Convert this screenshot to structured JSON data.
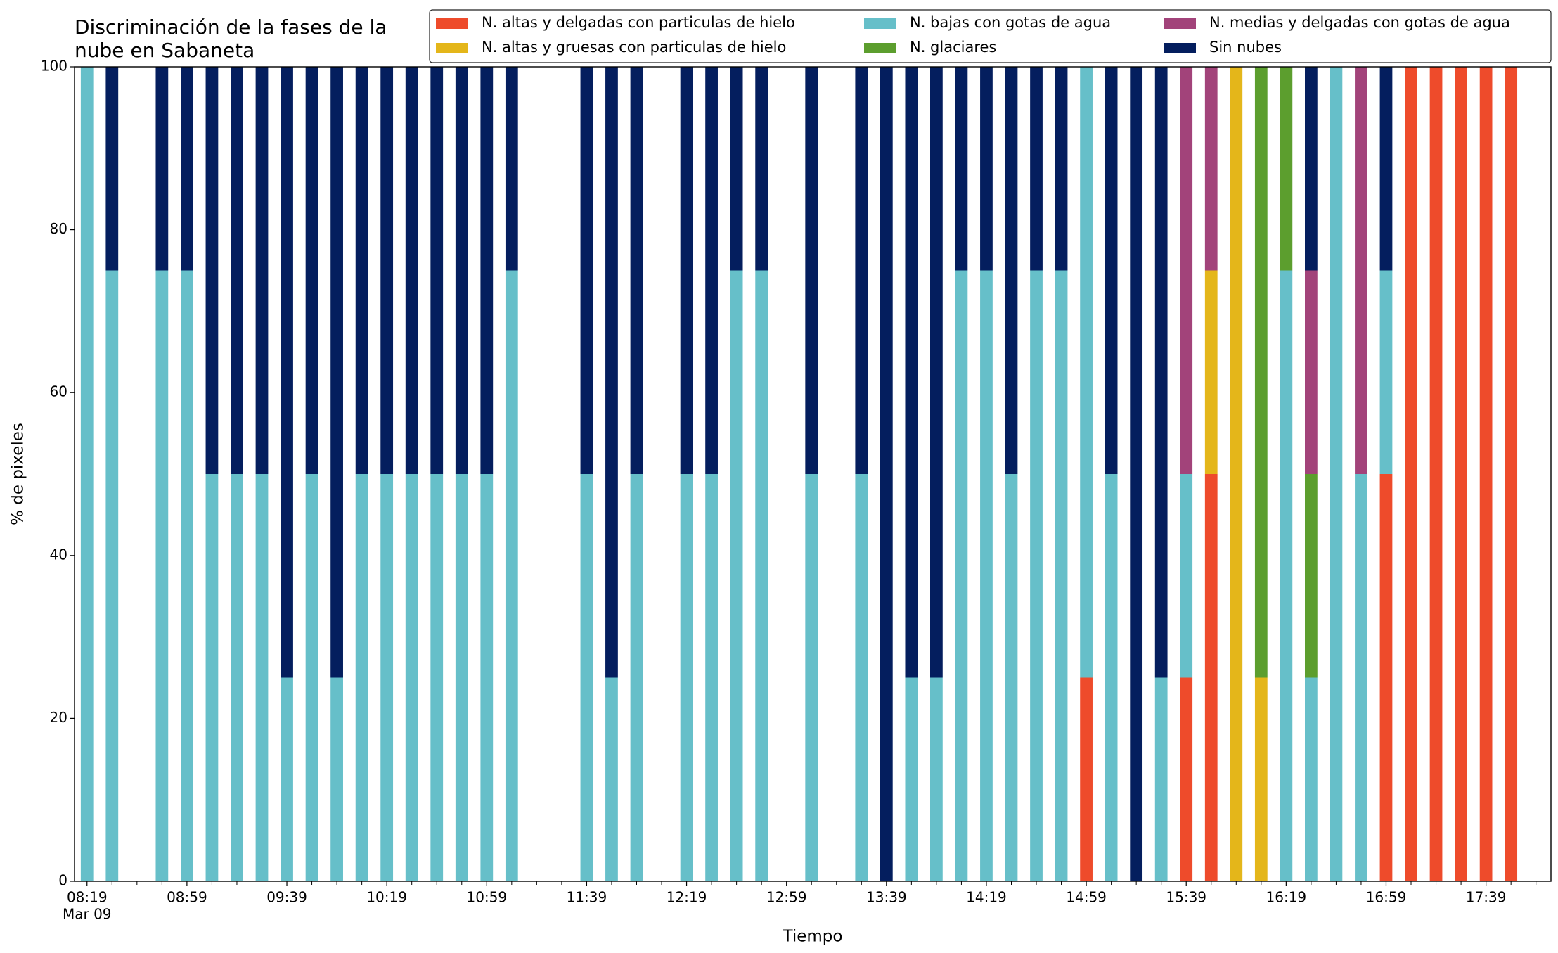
{
  "chart_data": {
    "type": "stacked_bar",
    "title": "Discriminación de la fases de la\nnube en Sabaneta",
    "xlabel": "Tiempo",
    "ylabel": "% de pixeles",
    "xdate_label": "Mar 09",
    "x": [
      "08:19",
      "08:29",
      "08:49",
      "08:59",
      "09:09",
      "09:19",
      "09:29",
      "09:39",
      "09:49",
      "09:59",
      "10:09",
      "10:19",
      "10:29",
      "10:39",
      "10:49",
      "10:59",
      "11:09",
      "11:39",
      "11:49",
      "11:59",
      "12:19",
      "12:29",
      "12:39",
      "12:49",
      "13:09",
      "13:29",
      "13:39",
      "13:49",
      "13:59",
      "14:09",
      "14:19",
      "14:29",
      "14:39",
      "14:49",
      "14:59",
      "15:09",
      "15:19",
      "15:29",
      "15:39",
      "15:49",
      "15:59",
      "16:09",
      "16:19",
      "16:29",
      "16:39",
      "16:49",
      "16:59",
      "17:09",
      "17:19",
      "17:29",
      "17:39",
      "17:49"
    ],
    "series": [
      {
        "name": "N. altas y delgadas con particulas de hielo",
        "color": "#ee4b2b",
        "values": [
          0,
          0,
          0,
          0,
          0,
          0,
          0,
          0,
          0,
          0,
          0,
          0,
          0,
          0,
          0,
          0,
          0,
          0,
          0,
          0,
          0,
          0,
          0,
          0,
          0,
          0,
          0,
          0,
          0,
          0,
          0,
          0,
          0,
          0,
          25,
          0,
          0,
          0,
          25,
          50,
          0,
          0,
          0,
          0,
          0,
          0,
          50,
          100,
          100,
          100,
          100,
          100
        ]
      },
      {
        "name": "N. altas y gruesas con particulas de hielo",
        "color": "#e4b61a",
        "values": [
          0,
          0,
          0,
          0,
          0,
          0,
          0,
          0,
          0,
          0,
          0,
          0,
          0,
          0,
          0,
          0,
          0,
          0,
          0,
          0,
          0,
          0,
          0,
          0,
          0,
          0,
          0,
          0,
          0,
          0,
          0,
          0,
          0,
          0,
          0,
          0,
          0,
          0,
          0,
          25,
          100,
          25,
          0,
          0,
          0,
          0,
          0,
          0,
          0,
          0,
          0,
          0
        ]
      },
      {
        "name": "N. bajas con gotas de agua",
        "color": "#66bfc9",
        "values": [
          100,
          75,
          75,
          75,
          50,
          50,
          50,
          25,
          50,
          25,
          50,
          50,
          50,
          50,
          50,
          50,
          75,
          50,
          25,
          50,
          50,
          50,
          75,
          75,
          50,
          50,
          0,
          25,
          25,
          75,
          75,
          50,
          75,
          75,
          75,
          50,
          0,
          25,
          25,
          0,
          0,
          0,
          75,
          25,
          100,
          50,
          25,
          0,
          0,
          0,
          0,
          0
        ]
      },
      {
        "name": "N. glaciares",
        "color": "#5c9e2e",
        "values": [
          0,
          0,
          0,
          0,
          0,
          0,
          0,
          0,
          0,
          0,
          0,
          0,
          0,
          0,
          0,
          0,
          0,
          0,
          0,
          0,
          0,
          0,
          0,
          0,
          0,
          0,
          0,
          0,
          0,
          0,
          0,
          0,
          0,
          0,
          0,
          0,
          0,
          0,
          0,
          0,
          0,
          75,
          25,
          25,
          0,
          0,
          0,
          0,
          0,
          0,
          0,
          0
        ]
      },
      {
        "name": "N. medias y delgadas con gotas de agua",
        "color": "#a2437a",
        "values": [
          0,
          0,
          0,
          0,
          0,
          0,
          0,
          0,
          0,
          0,
          0,
          0,
          0,
          0,
          0,
          0,
          0,
          0,
          0,
          0,
          0,
          0,
          0,
          0,
          0,
          0,
          0,
          0,
          0,
          0,
          0,
          0,
          0,
          0,
          0,
          0,
          0,
          0,
          50,
          25,
          0,
          0,
          0,
          25,
          0,
          50,
          0,
          0,
          0,
          0,
          0,
          0
        ]
      },
      {
        "name": "Sin nubes",
        "color": "#041e5e",
        "values": [
          0,
          25,
          25,
          25,
          50,
          50,
          50,
          75,
          50,
          75,
          50,
          50,
          50,
          50,
          50,
          50,
          25,
          50,
          75,
          50,
          50,
          50,
          25,
          25,
          50,
          50,
          100,
          75,
          75,
          25,
          25,
          50,
          25,
          25,
          0,
          50,
          100,
          75,
          0,
          0,
          0,
          0,
          0,
          25,
          0,
          0,
          25,
          0,
          0,
          0,
          0,
          0
        ]
      }
    ],
    "xlim": [
      "08:14",
      "18:05"
    ],
    "xticks": [
      "08:19",
      "08:59",
      "09:39",
      "10:19",
      "10:59",
      "11:39",
      "12:19",
      "12:59",
      "13:39",
      "14:19",
      "14:59",
      "15:39",
      "16:19",
      "16:59",
      "17:39"
    ],
    "xminorticks": [
      "08:29",
      "08:39",
      "08:49",
      "09:09",
      "09:19",
      "09:29",
      "09:49",
      "09:59",
      "10:09",
      "10:29",
      "10:39",
      "10:49",
      "11:09",
      "11:19",
      "11:29",
      "11:49",
      "11:59",
      "12:09",
      "12:29",
      "12:39",
      "12:49",
      "13:09",
      "13:19",
      "13:29",
      "13:49",
      "13:59",
      "14:09",
      "14:29",
      "14:39",
      "14:49",
      "15:09",
      "15:19",
      "15:29",
      "15:49",
      "15:59",
      "16:09",
      "16:29",
      "16:39",
      "16:49",
      "17:09",
      "17:19",
      "17:29",
      "17:49",
      "17:59"
    ],
    "bar_width_minutes": 5,
    "ylim": [
      0,
      100
    ],
    "yticks": [
      0,
      20,
      40,
      60,
      80,
      100
    ],
    "legend": "top-right",
    "legend_columns": 3
  }
}
